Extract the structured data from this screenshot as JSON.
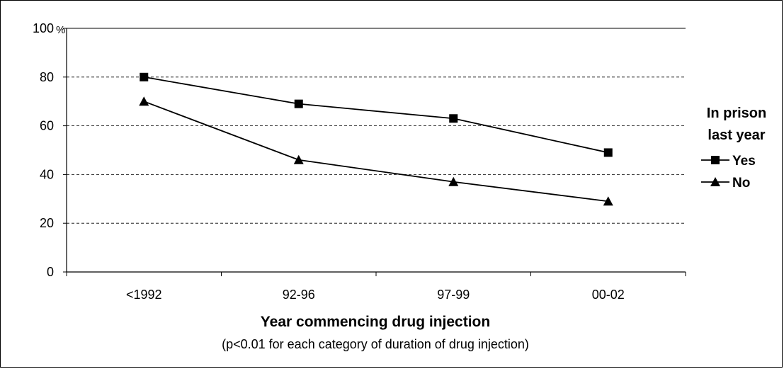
{
  "chart_data": {
    "type": "line",
    "title": "",
    "xlabel": "Year commencing drug injection",
    "xlabel_note": "(p<0.01 for each category of duration of drug injection)",
    "ylabel": "",
    "y_unit": "%",
    "ylim": [
      0,
      100
    ],
    "y_ticks": [
      "0",
      "20",
      "40",
      "60",
      "80",
      "100"
    ],
    "categories": [
      "<1992",
      "92-96",
      "97-99",
      "00-02"
    ],
    "grid": "horizontal dashed",
    "legend": {
      "title_line1": "In prison",
      "title_line2": "last year",
      "placement": "right"
    },
    "series": [
      {
        "name": "Yes",
        "marker": "square",
        "values": [
          80,
          69,
          63,
          49
        ]
      },
      {
        "name": "No",
        "marker": "triangle",
        "values": [
          70,
          46,
          37,
          29
        ]
      }
    ]
  }
}
